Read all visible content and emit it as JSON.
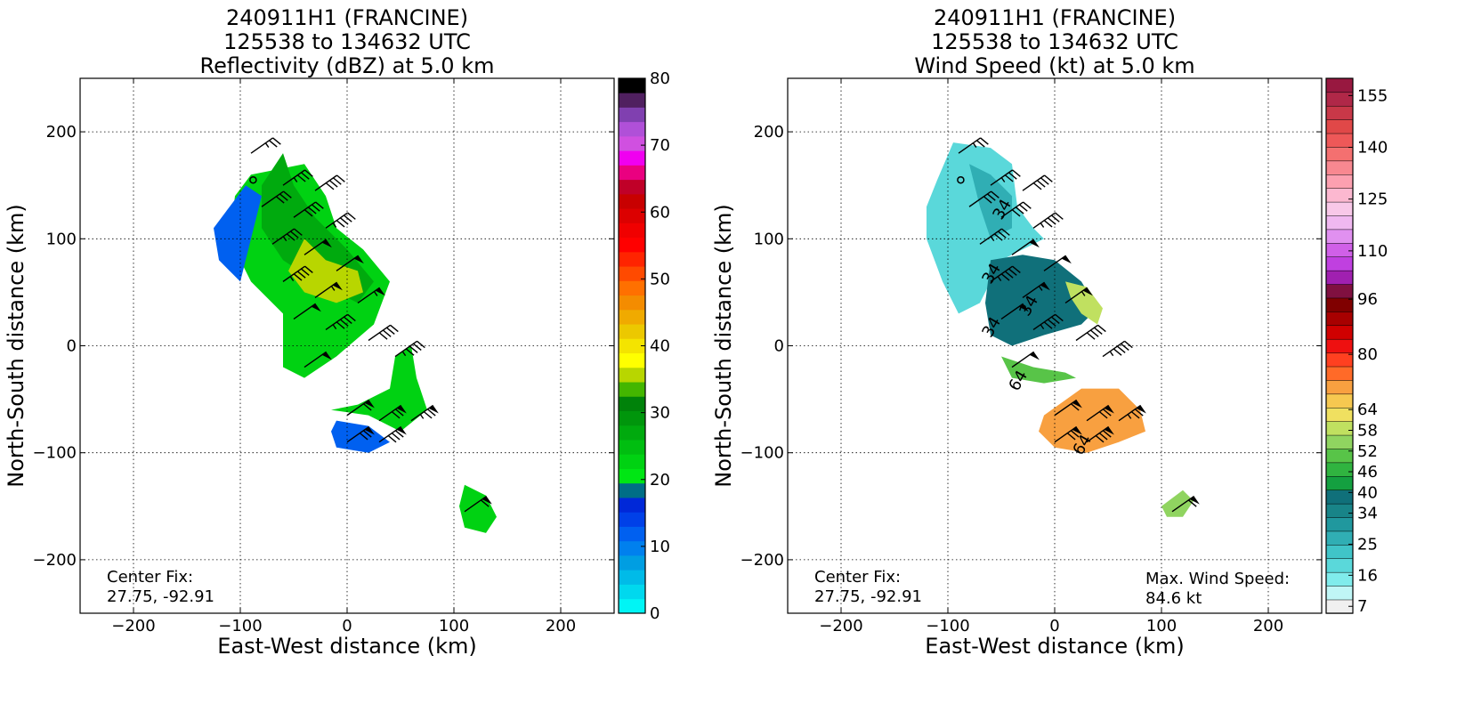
{
  "chart_data": [
    {
      "type": "heatmap",
      "title_lines": [
        "240911H1 (FRANCINE)",
        "125538 to 134632 UTC",
        "Reflectivity (dBZ) at 5.0 km"
      ],
      "xlabel": "East-West distance (km)",
      "ylabel": "North-South distance (km)",
      "xlim": [
        -250,
        250
      ],
      "ylim": [
        -250,
        250
      ],
      "xticks": [
        -200,
        -100,
        0,
        100,
        200
      ],
      "yticks": [
        -200,
        -100,
        0,
        100,
        200
      ],
      "xtick_labels": [
        "−200",
        "−100",
        "0",
        "100",
        "200"
      ],
      "ytick_labels": [
        "−200",
        "−100",
        "0",
        "100",
        "200"
      ],
      "grid": true,
      "center_fix_label": "Center Fix:",
      "center_fix_value": "27.75, -92.91",
      "colorbar": {
        "min": 0,
        "max": 80,
        "ticks": [
          0,
          10,
          20,
          30,
          40,
          50,
          60,
          70,
          80
        ],
        "tick_labels": [
          "0",
          "10",
          "20",
          "30",
          "40",
          "50",
          "60",
          "70",
          "80"
        ],
        "colors": [
          "#00f5f5",
          "#00d8ee",
          "#00bbe8",
          "#009ee2",
          "#0080ee",
          "#0060f0",
          "#0040e8",
          "#0028d8",
          "#006e86",
          "#00e614",
          "#00d212",
          "#00be10",
          "#00aa0e",
          "#00960c",
          "#00820a",
          "#44b600",
          "#b8d600",
          "#ffff00",
          "#f4e400",
          "#ecc800",
          "#f0aa00",
          "#f48c00",
          "#ff7000",
          "#ff4a00",
          "#ff2400",
          "#ff0000",
          "#f00000",
          "#dc0000",
          "#c80000",
          "#c00028",
          "#ea0080",
          "#f000f0",
          "#d050e0",
          "#b050d8",
          "#8040b0",
          "#502060",
          "#000000"
        ]
      },
      "region_levels": [
        {
          "points": [
            [
              -90,
              160
            ],
            [
              -40,
              170
            ],
            [
              -20,
              140
            ],
            [
              -10,
              110
            ],
            [
              15,
              90
            ],
            [
              40,
              60
            ],
            [
              25,
              20
            ],
            [
              -10,
              -10
            ],
            [
              -40,
              -30
            ],
            [
              -60,
              -20
            ],
            [
              -60,
              30
            ],
            [
              -90,
              60
            ],
            [
              -110,
              100
            ],
            [
              -105,
              140
            ]
          ],
          "value": 22
        },
        {
          "points": [
            [
              -60,
              180
            ],
            [
              -50,
              150
            ],
            [
              -30,
              120
            ],
            [
              0,
              90
            ],
            [
              25,
              60
            ],
            [
              10,
              40
            ],
            [
              -30,
              60
            ],
            [
              -60,
              80
            ],
            [
              -80,
              110
            ],
            [
              -80,
              150
            ]
          ],
          "value": 28
        },
        {
          "points": [
            [
              -40,
              100
            ],
            [
              -20,
              80
            ],
            [
              10,
              70
            ],
            [
              15,
              50
            ],
            [
              -10,
              40
            ],
            [
              -40,
              50
            ],
            [
              -55,
              70
            ]
          ],
          "value": 36
        },
        {
          "points": [
            [
              -110,
              130
            ],
            [
              -95,
              150
            ],
            [
              -80,
              140
            ],
            [
              -90,
              100
            ],
            [
              -100,
              60
            ],
            [
              -120,
              80
            ],
            [
              -125,
              110
            ]
          ],
          "value": 12
        },
        {
          "points": [
            [
              -15,
              -60
            ],
            [
              20,
              -65
            ],
            [
              50,
              -80
            ],
            [
              75,
              -60
            ],
            [
              65,
              -30
            ],
            [
              60,
              0
            ],
            [
              45,
              -10
            ],
            [
              40,
              -40
            ],
            [
              10,
              -55
            ]
          ],
          "value": 22
        },
        {
          "points": [
            [
              -10,
              -70
            ],
            [
              20,
              -75
            ],
            [
              40,
              -90
            ],
            [
              20,
              -100
            ],
            [
              -10,
              -95
            ],
            [
              -15,
              -80
            ]
          ],
          "value": 12
        },
        {
          "points": [
            [
              110,
              -130
            ],
            [
              130,
              -140
            ],
            [
              140,
              -160
            ],
            [
              130,
              -175
            ],
            [
              110,
              -170
            ],
            [
              105,
              -150
            ]
          ],
          "value": 22
        }
      ],
      "wind_barbs": [
        {
          "x": -90,
          "y": 180,
          "kt": 25
        },
        {
          "x": -60,
          "y": 150,
          "kt": 35
        },
        {
          "x": -30,
          "y": 145,
          "kt": 40
        },
        {
          "x": -80,
          "y": 130,
          "kt": 30
        },
        {
          "x": -50,
          "y": 120,
          "kt": 40
        },
        {
          "x": -20,
          "y": 110,
          "kt": 45
        },
        {
          "x": -70,
          "y": 95,
          "kt": 35
        },
        {
          "x": -40,
          "y": 85,
          "kt": 50
        },
        {
          "x": -10,
          "y": 70,
          "kt": 50
        },
        {
          "x": -60,
          "y": 60,
          "kt": 45
        },
        {
          "x": -30,
          "y": 45,
          "kt": 55
        },
        {
          "x": 10,
          "y": 40,
          "kt": 55
        },
        {
          "x": -50,
          "y": 25,
          "kt": 50
        },
        {
          "x": -20,
          "y": 15,
          "kt": 45
        },
        {
          "x": 20,
          "y": 5,
          "kt": 40
        },
        {
          "x": -40,
          "y": -20,
          "kt": 50
        },
        {
          "x": 45,
          "y": -10,
          "kt": 45
        },
        {
          "x": 0,
          "y": -65,
          "kt": 60
        },
        {
          "x": 30,
          "y": -70,
          "kt": 70
        },
        {
          "x": 60,
          "y": -70,
          "kt": 75
        },
        {
          "x": 0,
          "y": -90,
          "kt": 70
        },
        {
          "x": 30,
          "y": -90,
          "kt": 80
        },
        {
          "x": 110,
          "y": -155,
          "kt": 60
        }
      ],
      "center_marker": {
        "x": -88,
        "y": 155
      }
    },
    {
      "type": "heatmap",
      "title_lines": [
        "240911H1 (FRANCINE)",
        "125538 to 134632 UTC",
        "Wind Speed (kt) at 5.0 km"
      ],
      "xlabel": "East-West distance (km)",
      "ylabel": "North-South distance (km)",
      "xlim": [
        -250,
        250
      ],
      "ylim": [
        -250,
        250
      ],
      "xticks": [
        -200,
        -100,
        0,
        100,
        200
      ],
      "yticks": [
        -200,
        -100,
        0,
        100,
        200
      ],
      "xtick_labels": [
        "−200",
        "−100",
        "0",
        "100",
        "200"
      ],
      "ytick_labels": [
        "−200",
        "−100",
        "0",
        "100",
        "200"
      ],
      "grid": true,
      "center_fix_label": "Center Fix:",
      "center_fix_value": "27.75, -92.91",
      "max_wind_label": "Max. Wind Speed:",
      "max_wind_value": "84.6 kt",
      "contour_labels": [
        {
          "x": -45,
          "y": 125,
          "text": "34"
        },
        {
          "x": -55,
          "y": 65,
          "text": "34"
        },
        {
          "x": -20,
          "y": 35,
          "text": "34"
        },
        {
          "x": -55,
          "y": 15,
          "text": "34"
        },
        {
          "x": -30,
          "y": -35,
          "text": "64"
        },
        {
          "x": 30,
          "y": -95,
          "text": "64"
        }
      ],
      "colorbar": {
        "min": 5,
        "max": 160,
        "ticks": [
          7,
          16,
          25,
          34,
          40,
          46,
          52,
          58,
          64,
          80,
          96,
          110,
          125,
          140,
          155
        ],
        "tick_labels": [
          "7",
          "16",
          "25",
          "34",
          "40",
          "46",
          "52",
          "58",
          "64",
          "80",
          "96",
          "110",
          "125",
          "140",
          "155"
        ],
        "colors": [
          "#f0f0f0",
          "#c0f6f6",
          "#80ecec",
          "#5ad8da",
          "#40c4c8",
          "#30aeb4",
          "#20989e",
          "#188488",
          "#10707a",
          "#14a040",
          "#30b440",
          "#58c448",
          "#90d460",
          "#c0e060",
          "#f0e060",
          "#f6c850",
          "#f8a040",
          "#ff6a28",
          "#ff4020",
          "#ee1010",
          "#d00000",
          "#a80000",
          "#800000",
          "#801040",
          "#a020b0",
          "#c040e0",
          "#d060e8",
          "#e090f0",
          "#f0b8f0",
          "#f8c8e8",
          "#fcb8d0",
          "#fca0b0",
          "#f88890",
          "#f47070",
          "#ee5858",
          "#e04848",
          "#c83848",
          "#b02848",
          "#981840"
        ]
      },
      "region_levels": [
        {
          "points": [
            [
              -110,
              155
            ],
            [
              -95,
              190
            ],
            [
              -60,
              185
            ],
            [
              -40,
              170
            ],
            [
              -35,
              130
            ],
            [
              -20,
              110
            ],
            [
              -10,
              100
            ],
            [
              -30,
              90
            ],
            [
              -50,
              80
            ],
            [
              -70,
              40
            ],
            [
              -90,
              30
            ],
            [
              -105,
              60
            ],
            [
              -120,
              100
            ],
            [
              -120,
              130
            ]
          ],
          "value": 20
        },
        {
          "points": [
            [
              -80,
              170
            ],
            [
              -60,
              160
            ],
            [
              -40,
              140
            ],
            [
              -40,
              110
            ],
            [
              -60,
              100
            ],
            [
              -70,
              130
            ]
          ],
          "value": 28
        },
        {
          "points": [
            [
              -60,
              80
            ],
            [
              -30,
              85
            ],
            [
              0,
              80
            ],
            [
              25,
              60
            ],
            [
              40,
              35
            ],
            [
              25,
              20
            ],
            [
              -10,
              10
            ],
            [
              -40,
              0
            ],
            [
              -60,
              10
            ],
            [
              -65,
              40
            ]
          ],
          "value": 38
        },
        {
          "points": [
            [
              10,
              60
            ],
            [
              30,
              55
            ],
            [
              45,
              35
            ],
            [
              40,
              20
            ],
            [
              25,
              30
            ],
            [
              15,
              45
            ]
          ],
          "value": 58
        },
        {
          "points": [
            [
              -50,
              -10
            ],
            [
              -20,
              -20
            ],
            [
              10,
              -25
            ],
            [
              20,
              -30
            ],
            [
              -10,
              -35
            ],
            [
              -40,
              -30
            ]
          ],
          "value": 50
        },
        {
          "points": [
            [
              -10,
              -65
            ],
            [
              25,
              -40
            ],
            [
              60,
              -40
            ],
            [
              80,
              -60
            ],
            [
              85,
              -80
            ],
            [
              60,
              -90
            ],
            [
              30,
              -100
            ],
            [
              0,
              -95
            ],
            [
              -15,
              -80
            ]
          ],
          "value": 72
        },
        {
          "points": [
            [
              100,
              -150
            ],
            [
              120,
              -135
            ],
            [
              130,
              -145
            ],
            [
              120,
              -160
            ],
            [
              105,
              -160
            ]
          ],
          "value": 54
        }
      ],
      "wind_barbs": [
        {
          "x": -90,
          "y": 180,
          "kt": 25
        },
        {
          "x": -60,
          "y": 150,
          "kt": 35
        },
        {
          "x": -30,
          "y": 145,
          "kt": 40
        },
        {
          "x": -80,
          "y": 130,
          "kt": 30
        },
        {
          "x": -50,
          "y": 120,
          "kt": 40
        },
        {
          "x": -20,
          "y": 110,
          "kt": 45
        },
        {
          "x": -70,
          "y": 95,
          "kt": 35
        },
        {
          "x": -40,
          "y": 85,
          "kt": 50
        },
        {
          "x": -10,
          "y": 70,
          "kt": 50
        },
        {
          "x": -60,
          "y": 60,
          "kt": 45
        },
        {
          "x": -30,
          "y": 45,
          "kt": 55
        },
        {
          "x": 10,
          "y": 40,
          "kt": 55
        },
        {
          "x": -50,
          "y": 25,
          "kt": 50
        },
        {
          "x": -20,
          "y": 15,
          "kt": 45
        },
        {
          "x": 20,
          "y": 5,
          "kt": 40
        },
        {
          "x": -40,
          "y": -20,
          "kt": 50
        },
        {
          "x": 45,
          "y": -10,
          "kt": 45
        },
        {
          "x": 0,
          "y": -65,
          "kt": 60
        },
        {
          "x": 30,
          "y": -70,
          "kt": 70
        },
        {
          "x": 60,
          "y": -70,
          "kt": 75
        },
        {
          "x": 0,
          "y": -90,
          "kt": 70
        },
        {
          "x": 30,
          "y": -90,
          "kt": 80
        },
        {
          "x": 110,
          "y": -155,
          "kt": 60
        }
      ],
      "center_marker": {
        "x": -88,
        "y": 155
      }
    }
  ]
}
